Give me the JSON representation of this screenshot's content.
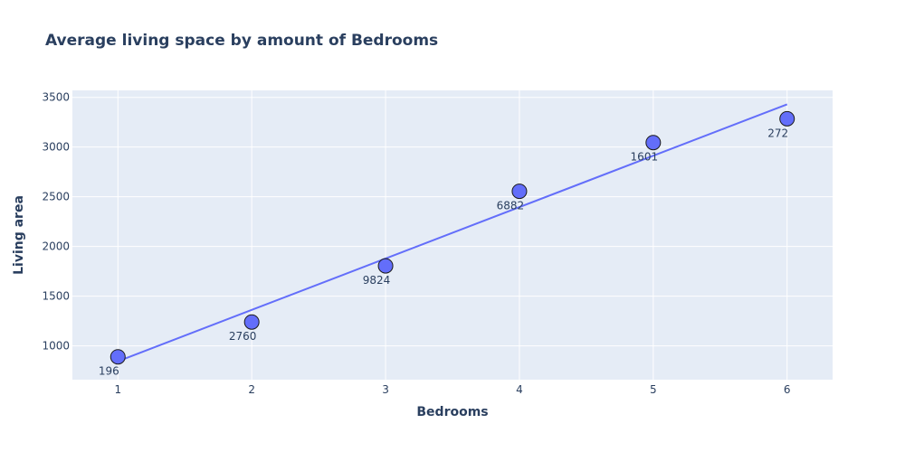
{
  "chart_data": {
    "type": "scatter",
    "title": "Average living space by amount of Bedrooms",
    "xlabel": "Bedrooms",
    "ylabel": "Living area",
    "xlim": [
      0.66,
      6.34
    ],
    "ylim": [
      660,
      3570
    ],
    "x_ticks": [
      1,
      2,
      3,
      4,
      5,
      6
    ],
    "y_ticks": [
      1000,
      1500,
      2000,
      2500,
      3000,
      3500
    ],
    "grid": true,
    "legend": "none",
    "colors": {
      "marker": "#636efa",
      "marker_outline": "#1a1a1a",
      "trendline": "#636efa",
      "plot_bg": "#e5ecf6",
      "grid": "#ffffff",
      "text": "#2a3f5f"
    },
    "points": [
      {
        "x": 1,
        "y": 890,
        "label": "196"
      },
      {
        "x": 2,
        "y": 1240,
        "label": "2760"
      },
      {
        "x": 3,
        "y": 1805,
        "label": "9824"
      },
      {
        "x": 4,
        "y": 2555,
        "label": "6882"
      },
      {
        "x": 5,
        "y": 3045,
        "label": "1601"
      },
      {
        "x": 6,
        "y": 3285,
        "label": "272"
      }
    ],
    "trendline": {
      "x": [
        1,
        6
      ],
      "y": [
        845,
        3430
      ]
    }
  }
}
